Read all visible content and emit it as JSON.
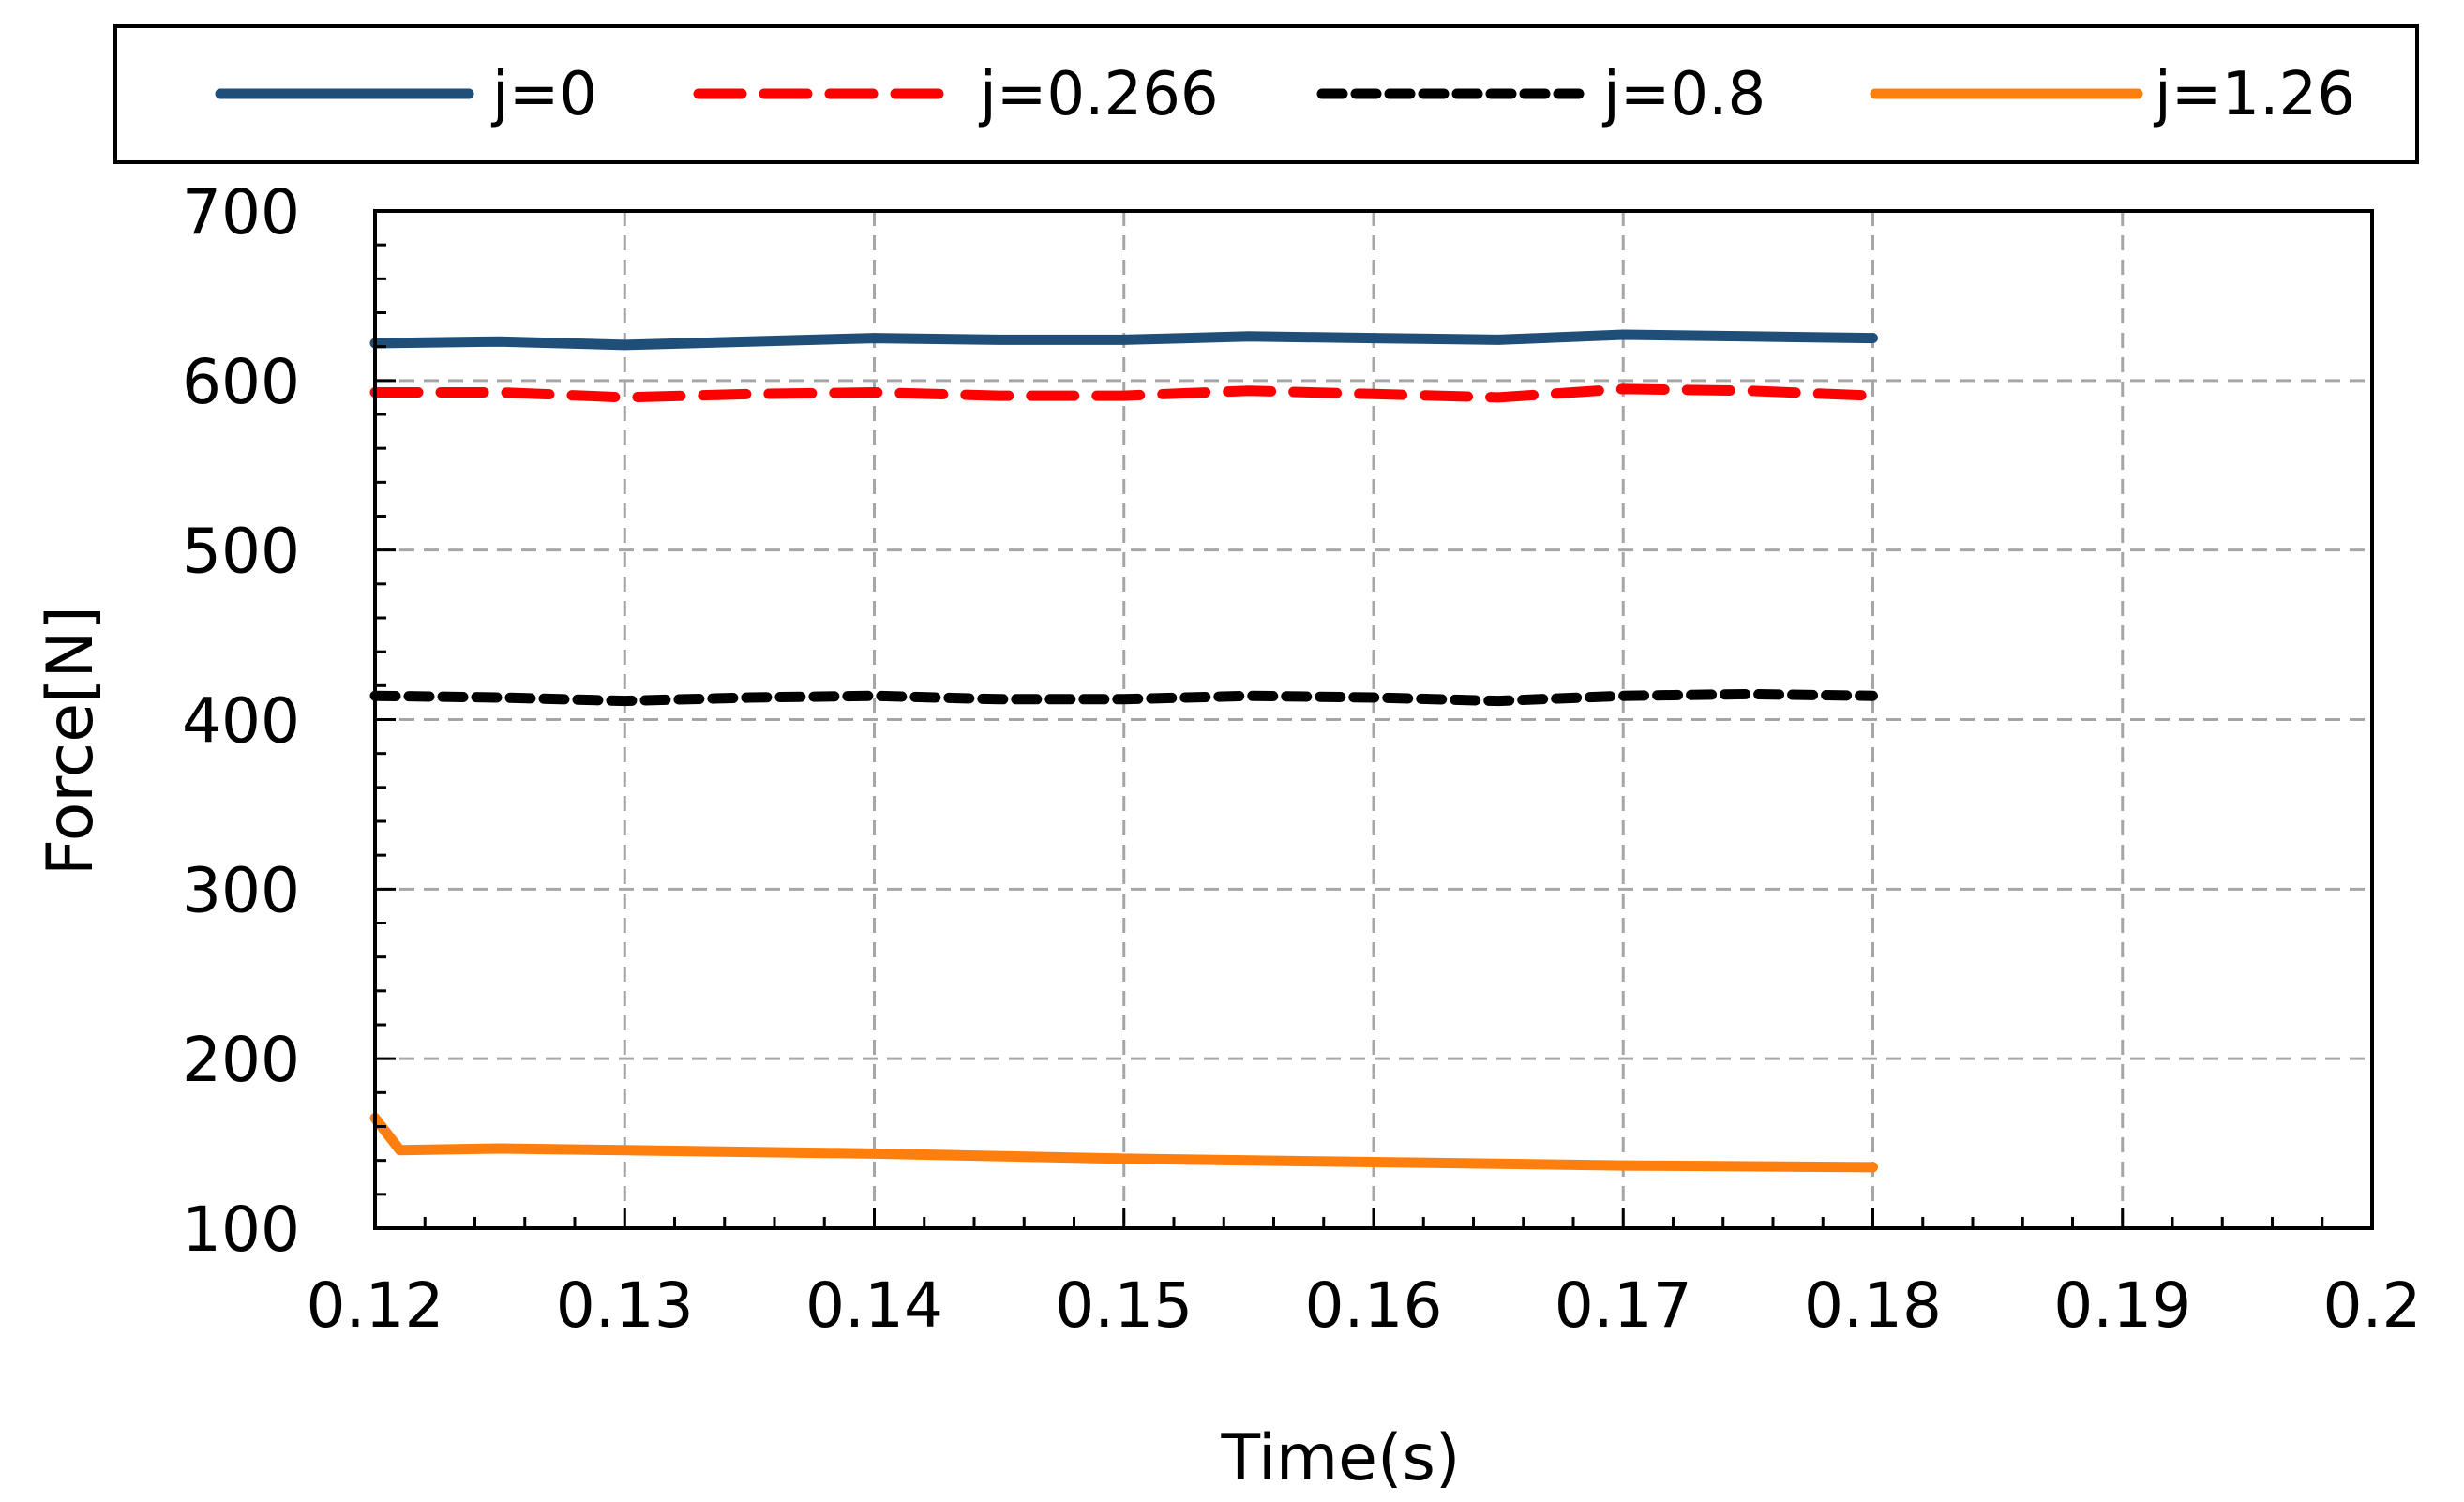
{
  "chart_data": {
    "type": "line",
    "title": "",
    "xlabel": "Time(s)",
    "ylabel": "Force[N]",
    "xlim": [
      0.12,
      0.2
    ],
    "ylim": [
      100,
      700
    ],
    "x_ticks": [
      0.12,
      0.13,
      0.14,
      0.15,
      0.16,
      0.17,
      0.18,
      0.19,
      0.2
    ],
    "x_tick_labels": [
      "0.12",
      "0.13",
      "0.14",
      "0.15",
      "0.16",
      "0.17",
      "0.18",
      "0.19",
      "0.2"
    ],
    "y_ticks": [
      100,
      200,
      300,
      400,
      500,
      600,
      700
    ],
    "y_tick_labels": [
      "100",
      "200",
      "300",
      "400",
      "500",
      "600",
      "700"
    ],
    "grid": true,
    "legend_position": "top",
    "series": [
      {
        "name": "j=0",
        "color": "#1F4E79",
        "style": "solid",
        "x": [
          0.12,
          0.125,
          0.13,
          0.135,
          0.14,
          0.145,
          0.15,
          0.155,
          0.16,
          0.165,
          0.17,
          0.175,
          0.18
        ],
        "y": [
          622,
          623,
          621,
          623,
          625,
          624,
          624,
          626,
          625,
          624,
          627,
          626,
          625
        ]
      },
      {
        "name": "j=0.266",
        "color": "#FF0000",
        "style": "dashed",
        "x": [
          0.12,
          0.125,
          0.13,
          0.135,
          0.14,
          0.145,
          0.15,
          0.155,
          0.16,
          0.165,
          0.17,
          0.175,
          0.18
        ],
        "y": [
          593,
          593,
          590,
          592,
          593,
          591,
          591,
          594,
          592,
          590,
          595,
          594,
          591
        ]
      },
      {
        "name": "j=0.8",
        "color": "#000000",
        "style": "dashed",
        "x": [
          0.12,
          0.125,
          0.13,
          0.135,
          0.14,
          0.145,
          0.15,
          0.155,
          0.16,
          0.165,
          0.17,
          0.175,
          0.18
        ],
        "y": [
          414,
          413,
          411,
          413,
          414,
          412,
          412,
          414,
          413,
          411,
          414,
          415,
          414
        ]
      },
      {
        "name": "j=1.26",
        "color": "#FF7F0E",
        "style": "solid",
        "x": [
          0.12,
          0.121,
          0.125,
          0.13,
          0.14,
          0.15,
          0.16,
          0.17,
          0.18
        ],
        "y": [
          165,
          146,
          147,
          146,
          144,
          141,
          139,
          137,
          136
        ]
      }
    ]
  }
}
